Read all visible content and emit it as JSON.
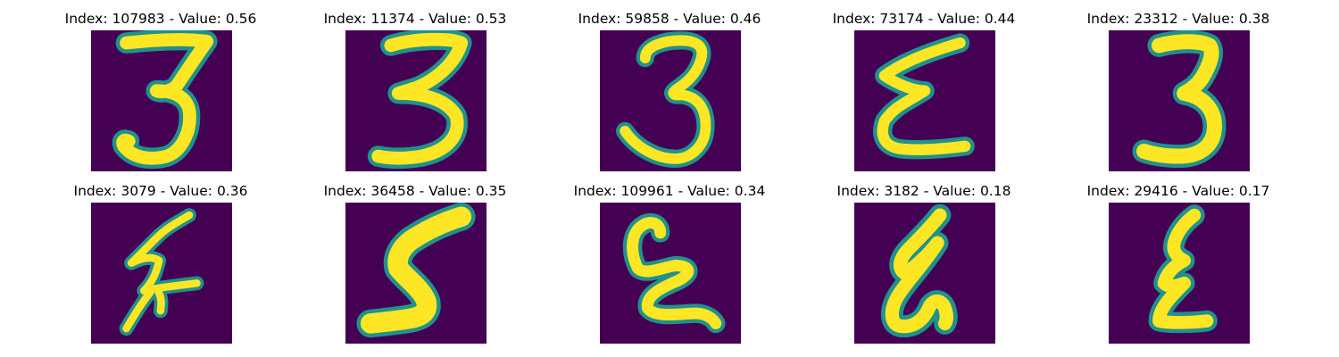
{
  "figure": {
    "colors": {
      "background": "#440154",
      "stroke_edge": "#21918c",
      "stroke_core": "#fde725"
    },
    "panels": [
      {
        "index": "107983",
        "value": "0.56",
        "title": "Index: 107983 - Value: 0.56",
        "glyph": "three-tall"
      },
      {
        "index": "11374",
        "value": "0.53",
        "title": "Index: 11374 - Value: 0.53",
        "glyph": "three-round"
      },
      {
        "index": "59858",
        "value": "0.46",
        "title": "Index: 59858 - Value: 0.46",
        "glyph": "three-loop"
      },
      {
        "index": "73174",
        "value": "0.44",
        "title": "Index: 73174 - Value: 0.44",
        "glyph": "epsilon"
      },
      {
        "index": "23312",
        "value": "0.38",
        "title": "Index: 23312 - Value: 0.38",
        "glyph": "three-bold"
      },
      {
        "index": "3079",
        "value": "0.36",
        "title": "Index: 3079 - Value: 0.36",
        "glyph": "thin-zigzag"
      },
      {
        "index": "36458",
        "value": "0.35",
        "title": "Index: 36458 - Value: 0.35",
        "glyph": "five-bold"
      },
      {
        "index": "109961",
        "value": "0.34",
        "title": "Index: 109961 - Value: 0.34",
        "glyph": "curl-e"
      },
      {
        "index": "3182",
        "value": "0.18",
        "title": "Index: 3182 - Value: 0.18",
        "glyph": "slant-loop"
      },
      {
        "index": "29416",
        "value": "0.17",
        "title": "Index: 29416 - Value: 0.17",
        "glyph": "narrow-e"
      }
    ]
  }
}
